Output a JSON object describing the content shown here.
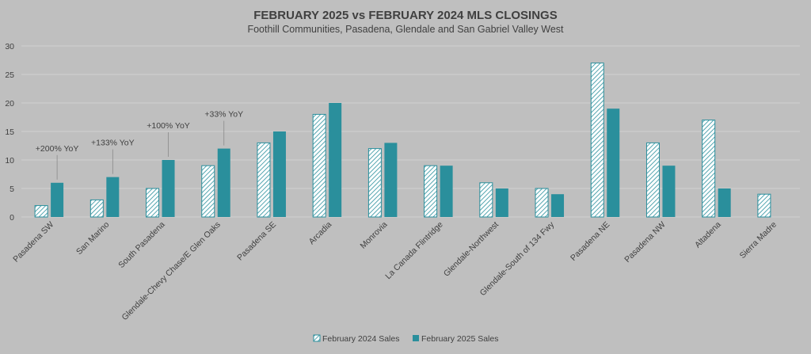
{
  "chart_data": {
    "type": "bar",
    "title": "FEBRUARY 2025 vs FEBRUARY 2024 MLS CLOSINGS",
    "subtitle": "Foothill Communities, Pasadena, Glendale and San Gabriel Valley West",
    "categories": [
      "Pasadena SW",
      "San Marino",
      "South Pasadena",
      "Glendale-Chevy Chase/E Glen Oaks",
      "Pasadena SE",
      "Arcadia",
      "Monrovia",
      "La Canada Flintridge",
      "Glendale-Northwest",
      "Glendale-South of 134 Fwy",
      "Pasadena NE",
      "Pasadena NW",
      "Altadena",
      "Sierra Madre"
    ],
    "series": [
      {
        "name": "February 2024 Sales",
        "values": [
          2,
          3,
          5,
          9,
          13,
          18,
          12,
          9,
          6,
          5,
          27,
          13,
          17,
          4
        ]
      },
      {
        "name": "February 2025 Sales",
        "values": [
          6,
          7,
          10,
          12,
          15,
          20,
          13,
          9,
          5,
          4,
          19,
          9,
          5,
          0
        ]
      }
    ],
    "ylim": [
      0,
      30
    ],
    "yticks": [
      0,
      5,
      10,
      15,
      20,
      25,
      30
    ],
    "grid": true,
    "legend_position": "bottom",
    "annotations": [
      {
        "category_index": 0,
        "text": "+200% YoY"
      },
      {
        "category_index": 1,
        "text": "+133% YoY"
      },
      {
        "category_index": 2,
        "text": "+100% YoY"
      },
      {
        "category_index": 3,
        "text": "+33% YoY"
      }
    ],
    "colors": {
      "background": "#bfbfbf",
      "series2024_stroke": "#2a8f9c",
      "series2024_fill": "#ffffff",
      "series2025": "#2a8f9c",
      "grid": "#d2d2d2",
      "text": "#404040"
    }
  }
}
